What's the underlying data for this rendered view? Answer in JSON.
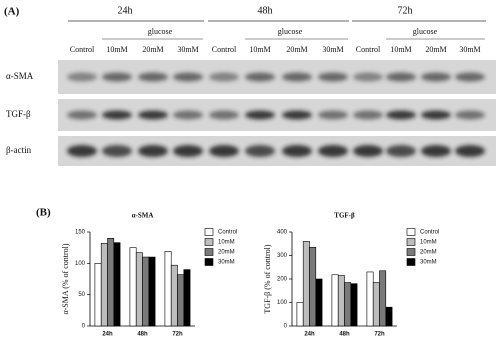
{
  "panel_a": {
    "label": "(A)",
    "timepoints": [
      "24h",
      "48h",
      "72h"
    ],
    "group_label": "glucose",
    "lanes": [
      "Control",
      "10mM",
      "20mM",
      "30mM"
    ],
    "rows": [
      "α-SMA",
      "TGF-β",
      "β-actin"
    ]
  },
  "panel_b_label": "(B)",
  "chart_data": [
    {
      "type": "bar",
      "title": "α-SMA",
      "y_label": "α-SMA (% of control)",
      "categories": [
        "24h",
        "48h",
        "72h"
      ],
      "series": [
        {
          "name": "Control",
          "color": "#ffffff",
          "values": [
            100,
            125,
            119
          ]
        },
        {
          "name": "10mM",
          "color": "#bdbdbd",
          "values": [
            132,
            117,
            97
          ]
        },
        {
          "name": "20mM",
          "color": "#7a7a7a",
          "values": [
            140,
            110,
            82
          ]
        },
        {
          "name": "30mM",
          "color": "#000000",
          "values": [
            133,
            110,
            90
          ]
        }
      ],
      "ylim": [
        0,
        150
      ],
      "yticks": [
        0,
        50,
        100,
        150
      ]
    },
    {
      "type": "bar",
      "title": "TGF-β",
      "y_label": "TGF-β (% of control)",
      "categories": [
        "24h",
        "48h",
        "72h"
      ],
      "series": [
        {
          "name": "Control",
          "color": "#ffffff",
          "values": [
            100,
            218,
            230
          ]
        },
        {
          "name": "10mM",
          "color": "#bdbdbd",
          "values": [
            360,
            215,
            185
          ]
        },
        {
          "name": "20mM",
          "color": "#7a7a7a",
          "values": [
            335,
            185,
            235
          ]
        },
        {
          "name": "30mM",
          "color": "#000000",
          "values": [
            200,
            180,
            80
          ]
        }
      ],
      "ylim": [
        0,
        400
      ],
      "yticks": [
        0,
        100,
        200,
        300,
        400
      ]
    }
  ]
}
